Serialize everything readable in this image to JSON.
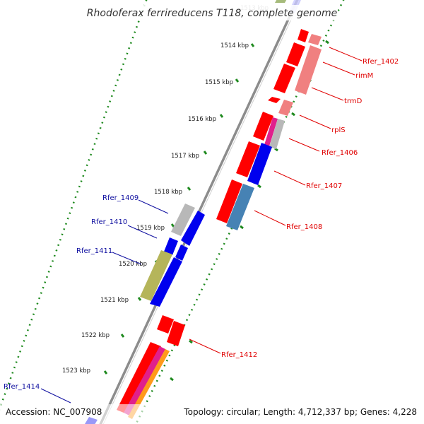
{
  "title": "Rhodoferax ferrireducens T118, complete genome",
  "footer": {
    "accession": "Accession: NC_007908",
    "summary": "Topology: circular; Length: 4,712,337 bp; Genes: 4,228"
  },
  "ticks": [
    "1514 kbp",
    "1515 kbp",
    "1516 kbp",
    "1517 kbp",
    "1518 kbp",
    "1519 kbp",
    "1520 kbp",
    "1521 kbp",
    "1522 kbp",
    "1523 kbp"
  ],
  "gene_labels": {
    "right": [
      "Rfer_1402",
      "rimM",
      "trmD",
      "rplS",
      "Rfer_1406",
      "Rfer_1407",
      "Rfer_1408",
      "Rfer_1412"
    ],
    "left": [
      "Rfer_1409",
      "Rfer_1410",
      "Rfer_1411",
      "Rfer_1414"
    ]
  },
  "colors": {
    "cds": "#ff0000",
    "cds_light": "#f08080",
    "cds_blue": "#0000ee",
    "cds_steel": "#4682b4",
    "cds_gray": "#b8b8b8",
    "cds_olive": "#b5b55a",
    "magenta": "#e0208c",
    "orange": "#ff9a1a",
    "label_red": "#e00000",
    "label_blue": "#1010a0",
    "backbone": "#8c8c8c",
    "dots": "#1f8a1f"
  }
}
